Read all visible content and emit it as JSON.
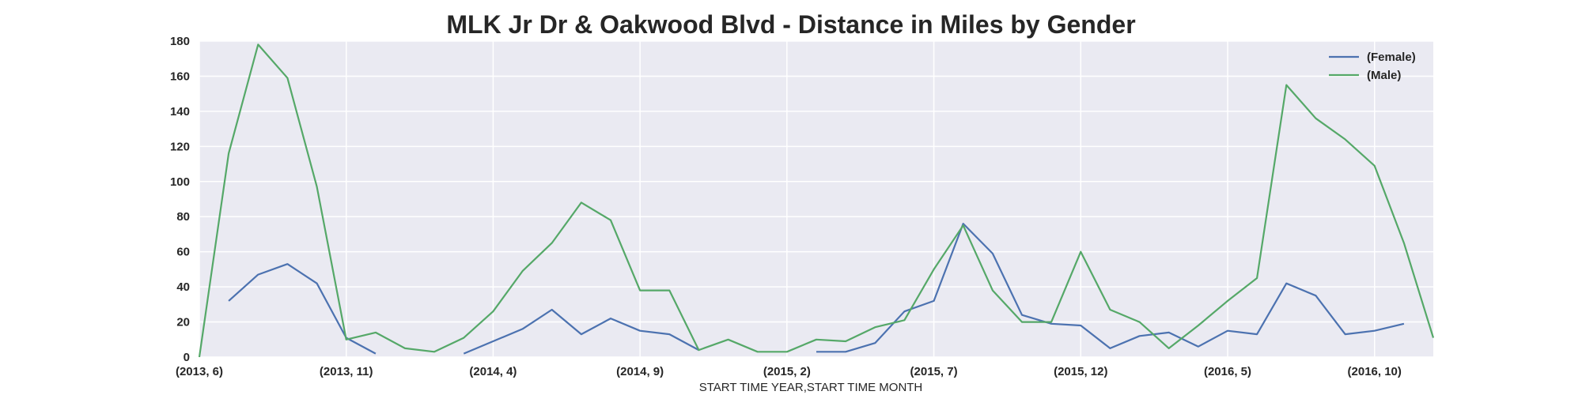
{
  "chart_data": {
    "type": "line",
    "title": "MLK Jr Dr & Oakwood Blvd - Distance in Miles by Gender",
    "xlabel": "START TIME YEAR,START TIME MONTH",
    "ylabel": "",
    "ylim": [
      0,
      180
    ],
    "yticks": [
      0,
      20,
      40,
      60,
      80,
      100,
      120,
      140,
      160,
      180
    ],
    "grid": true,
    "legend_position": "top-right",
    "x": [
      "(2013, 6)",
      "(2013, 7)",
      "(2013, 8)",
      "(2013, 9)",
      "(2013, 10)",
      "(2013, 11)",
      "(2013, 12)",
      "(2014, 1)",
      "(2014, 2)",
      "(2014, 3)",
      "(2014, 4)",
      "(2014, 5)",
      "(2014, 6)",
      "(2014, 7)",
      "(2014, 8)",
      "(2014, 9)",
      "(2014, 10)",
      "(2014, 11)",
      "(2014, 12)",
      "(2015, 1)",
      "(2015, 2)",
      "(2015, 3)",
      "(2015, 4)",
      "(2015, 5)",
      "(2015, 6)",
      "(2015, 7)",
      "(2015, 8)",
      "(2015, 9)",
      "(2015, 10)",
      "(2015, 11)",
      "(2015, 12)",
      "(2016, 1)",
      "(2016, 2)",
      "(2016, 3)",
      "(2016, 4)",
      "(2016, 5)",
      "(2016, 6)",
      "(2016, 7)",
      "(2016, 8)",
      "(2016, 9)",
      "(2016, 10)",
      "(2016, 11)",
      "(2016, 12)"
    ],
    "xticks": [
      "(2013, 6)",
      "(2013, 11)",
      "(2014, 4)",
      "(2014, 9)",
      "(2015, 2)",
      "(2015, 7)",
      "(2015, 12)",
      "(2016, 5)",
      "(2016, 10)"
    ],
    "series": [
      {
        "name": "(Female)",
        "color": "#4c72b0",
        "values": [
          null,
          32,
          47,
          53,
          42,
          11,
          2,
          null,
          null,
          2,
          9,
          16,
          27,
          13,
          22,
          15,
          13,
          4,
          null,
          null,
          null,
          3,
          3,
          8,
          26,
          32,
          76,
          59,
          24,
          19,
          18,
          5,
          12,
          14,
          6,
          15,
          13,
          42,
          35,
          13,
          15,
          19,
          null
        ]
      },
      {
        "name": "(Male)",
        "color": "#55a868",
        "values": [
          0,
          116,
          178,
          159,
          97,
          10,
          14,
          5,
          3,
          11,
          26,
          49,
          65,
          88,
          78,
          38,
          38,
          4,
          10,
          3,
          3,
          10,
          9,
          17,
          21,
          50,
          75,
          38,
          20,
          20,
          60,
          27,
          20,
          5,
          18,
          32,
          45,
          155,
          136,
          124,
          109,
          65,
          11
        ]
      }
    ]
  }
}
